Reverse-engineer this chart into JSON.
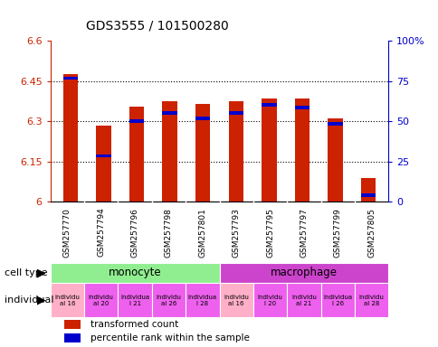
{
  "title": "GDS3555 / 101500280",
  "samples": [
    "GSM257770",
    "GSM257794",
    "GSM257796",
    "GSM257798",
    "GSM257801",
    "GSM257793",
    "GSM257795",
    "GSM257797",
    "GSM257799",
    "GSM257805"
  ],
  "red_values": [
    6.475,
    6.285,
    6.355,
    6.375,
    6.365,
    6.375,
    6.385,
    6.385,
    6.31,
    6.09
  ],
  "blue_values": [
    6.455,
    6.165,
    6.295,
    6.325,
    6.305,
    6.325,
    6.355,
    6.345,
    6.285,
    6.02
  ],
  "ymin": 6.0,
  "ymax": 6.6,
  "yticks_left": [
    6.0,
    6.15,
    6.3,
    6.45,
    6.6
  ],
  "yticks_right": [
    0,
    25,
    50,
    75,
    100
  ],
  "ytick_labels_left": [
    "6",
    "6.15",
    "6.3",
    "6.45",
    "6.6"
  ],
  "ytick_labels_right": [
    "0",
    "25",
    "50",
    "75",
    "100%"
  ],
  "cell_type_labels": [
    "monocyte",
    "macrophage"
  ],
  "cell_type_starts": [
    0,
    5
  ],
  "cell_type_ends": [
    5,
    10
  ],
  "cell_type_colors": [
    "#90EE90",
    "#CC44CC"
  ],
  "ind_labels": [
    "individu\nal 16",
    "individu\nal 20",
    "individua\nl 21",
    "individu\nal 26",
    "individua\nl 28",
    "individu\nal 16",
    "individu\nl 20",
    "individu\nal 21",
    "individua\nl 26",
    "individu\nal 28"
  ],
  "ind_colors": [
    "#FFB0C8",
    "#EE60EE",
    "#EE60EE",
    "#EE60EE",
    "#EE60EE",
    "#FFB0C8",
    "#EE60EE",
    "#EE60EE",
    "#EE60EE",
    "#EE60EE"
  ],
  "bar_color_red": "#CC2200",
  "bar_color_blue": "#0000CC",
  "bar_width": 0.45,
  "legend_red": "transformed count",
  "legend_blue": "percentile rank within the sample",
  "red_color": "#CC2200",
  "blue_color": "#0000CC",
  "names_bg_color": "#C8C8C8",
  "names_sep_color": "#FFFFFF",
  "blue_bar_height": 0.012
}
